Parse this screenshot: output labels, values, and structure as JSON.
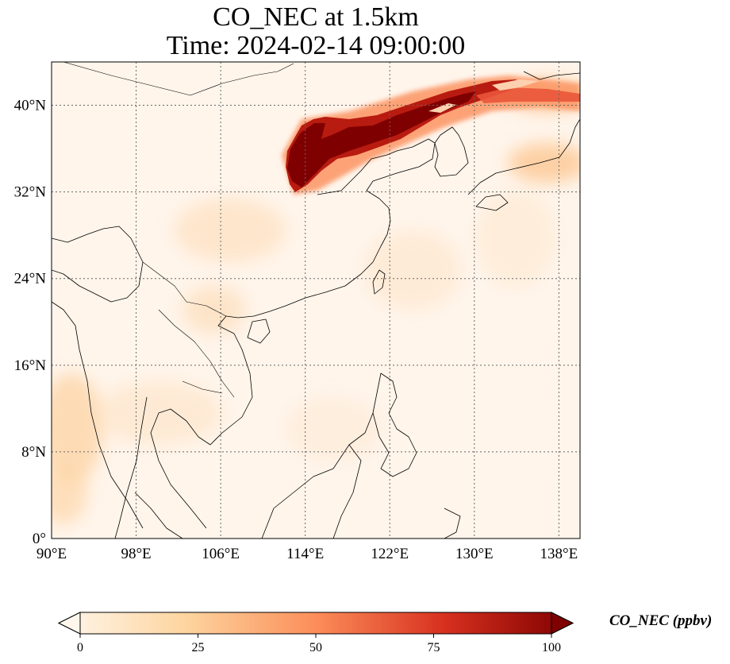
{
  "title": {
    "line1": "CO_NEC at 1.5km",
    "line2": "Time: 2024-02-14 09:00:00"
  },
  "map": {
    "extent": {
      "lon": [
        90,
        140
      ],
      "lat": [
        0,
        44
      ]
    },
    "lon_ticks": [
      {
        "value": 90,
        "label": "90°E"
      },
      {
        "value": 98,
        "label": "98°E"
      },
      {
        "value": 106,
        "label": "106°E"
      },
      {
        "value": 114,
        "label": "114°E"
      },
      {
        "value": 122,
        "label": "122°E"
      },
      {
        "value": 130,
        "label": "130°E"
      },
      {
        "value": 138,
        "label": "138°E"
      }
    ],
    "lat_ticks": [
      {
        "value": 0,
        "label": "0°"
      },
      {
        "value": 8,
        "label": "8°N"
      },
      {
        "value": 16,
        "label": "16°N"
      },
      {
        "value": 24,
        "label": "24°N"
      },
      {
        "value": 32,
        "label": "32°N"
      },
      {
        "value": 40,
        "label": "40°N"
      }
    ],
    "gridlines": true,
    "background_color": "#fff5eb",
    "plume_color": "#7f0000"
  },
  "colorbar": {
    "label": "CO_NEC (ppbv)",
    "colormap": "OrRd",
    "min": 0,
    "max": 100,
    "extend": "both",
    "ticks": [
      {
        "value": 0,
        "label": "0"
      },
      {
        "value": 25,
        "label": "25"
      },
      {
        "value": 50,
        "label": "50"
      },
      {
        "value": 75,
        "label": "75"
      },
      {
        "value": 100,
        "label": "100"
      }
    ]
  }
}
